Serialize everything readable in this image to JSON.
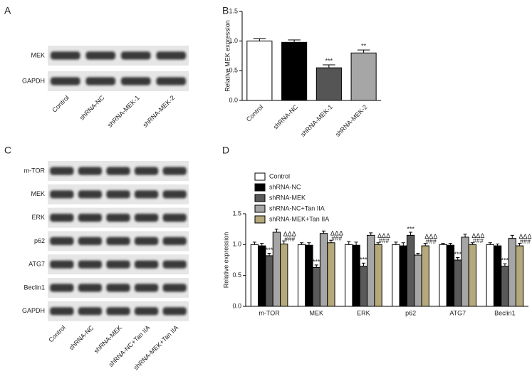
{
  "blot_a": {
    "label": "A",
    "rows": [
      "MEK",
      "GAPDH"
    ],
    "lanes": [
      "Control",
      "shRNA-NC",
      "shRNA-MEK-1",
      "shRNA-MEK-2"
    ]
  },
  "blot_c": {
    "label": "C",
    "rows": [
      "m-TOR",
      "MEK",
      "ERK",
      "p62",
      "ATG7",
      "Beclin1",
      "GAPDH"
    ],
    "lanes": [
      "Control",
      "shRNA-NC",
      "shRNA-MEK",
      "shRNA-NC+Tan IIA",
      "shRNA-MEK+Tan IIA"
    ]
  },
  "chart_data": [
    {
      "type": "bar",
      "panel": "B",
      "y_label": "Relative MEK expression",
      "categories": [
        "Control",
        "shRNA-NC",
        "shRNA-MEK-1",
        "shRNA-MEK-2"
      ],
      "values": [
        1.0,
        0.98,
        0.55,
        0.8
      ],
      "errors": [
        0.04,
        0.04,
        0.05,
        0.05
      ],
      "annotations": [
        null,
        null,
        "***",
        "**"
      ],
      "colors": [
        "#ffffff",
        "#000000",
        "#555555",
        "#a6a6a6"
      ],
      "ylim": [
        0,
        1.5
      ],
      "yticks": [
        {
          "value": 0,
          "label": "0.0"
        },
        0.5,
        {
          "value": 1,
          "label": "1.0"
        },
        1.5
      ]
    },
    {
      "type": "grouped_bar",
      "panel": "D",
      "y_label": "Relative expression",
      "categories": [
        "m-TOR",
        "MEK",
        "ERK",
        "p62",
        "ATG7",
        "Beclin1"
      ],
      "series": [
        {
          "name": "Control",
          "color": "#ffffff",
          "values": [
            1.0,
            1.0,
            1.0,
            1.0,
            1.0,
            1.0
          ],
          "errors": [
            0.04,
            0.03,
            0.05,
            0.04,
            0.02,
            0.03
          ]
        },
        {
          "name": "shRNA-NC",
          "color": "#000000",
          "values": [
            0.98,
            0.99,
            0.99,
            0.98,
            0.99,
            0.98
          ],
          "errors": [
            0.04,
            0.04,
            0.05,
            0.05,
            0.03,
            0.03
          ]
        },
        {
          "name": "shRNA-MEK",
          "color": "#595959",
          "values": [
            0.82,
            0.63,
            0.65,
            1.15,
            0.75,
            0.65
          ],
          "errors": [
            0.04,
            0.04,
            0.05,
            0.05,
            0.04,
            0.04
          ],
          "annotations": [
            "***",
            "***",
            "***",
            "***",
            "***",
            "***"
          ]
        },
        {
          "name": "shRNA-NC+Tan IIA",
          "color": "#a6a6a6",
          "values": [
            1.2,
            1.18,
            1.15,
            0.83,
            1.12,
            1.1
          ],
          "errors": [
            0.05,
            0.04,
            0.04,
            0.03,
            0.05,
            0.05
          ]
        },
        {
          "name": "shRNA-MEK+Tan IIA",
          "color": "#b5a87a",
          "values": [
            1.01,
            1.03,
            1.0,
            0.98,
            1.0,
            0.98
          ],
          "errors": [
            0.05,
            0.04,
            0.03,
            0.04,
            0.03,
            0.04
          ],
          "annotations": [
            "ΔΔΔ",
            "ΔΔΔ",
            "ΔΔΔ",
            "ΔΔΔ",
            "ΔΔΔ",
            "ΔΔΔ"
          ],
          "annotations2": [
            "###",
            "###",
            "###",
            "###",
            "###",
            "###"
          ]
        }
      ],
      "ylim": [
        0,
        1.5
      ],
      "yticks": [
        {
          "value": 0,
          "label": "0.0"
        },
        0.5,
        {
          "value": 1,
          "label": "1.0"
        },
        1.5
      ]
    }
  ]
}
